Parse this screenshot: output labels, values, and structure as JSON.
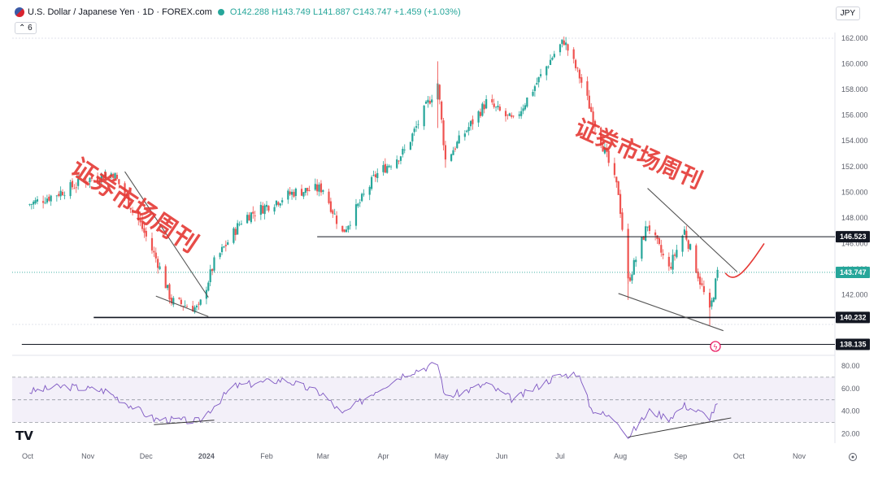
{
  "header": {
    "symbol_title": "U.S. Dollar / Japanese Yen · 1D · FOREX.com",
    "ohlc_text": "O142.288 H143.749 L141.887 C143.747 +1.459 (+1.03%)",
    "indicator_count": "6",
    "currency": "JPY"
  },
  "watermark": {
    "text": "证券市场周刊",
    "small": "周刊"
  },
  "colors": {
    "up": "#26a69a",
    "down": "#ef5350",
    "rsi": "#7e57c2",
    "line": "#131722"
  },
  "chart_data": {
    "type": "candlestick",
    "title": "U.S. Dollar / Japanese Yen · 1D · FOREX.com",
    "y_ticks": [
      "162.000",
      "160.000",
      "158.000",
      "156.000",
      "154.000",
      "152.000",
      "150.000",
      "148.000",
      "146.000",
      "144.000",
      "142.000",
      "140.000"
    ],
    "x_ticks": [
      "Oct",
      "Nov",
      "Dec",
      "2024",
      "Feb",
      "Mar",
      "Apr",
      "May",
      "Jun",
      "Jul",
      "Aug",
      "Sep",
      "Oct",
      "Nov"
    ],
    "ylim": [
      138.4,
      162.4
    ],
    "price_path": [
      {
        "date": "2023-10-01",
        "price": 149.0
      },
      {
        "date": "2023-10-15",
        "price": 149.8
      },
      {
        "date": "2023-11-01",
        "price": 151.0
      },
      {
        "date": "2023-11-14",
        "price": 151.5
      },
      {
        "date": "2023-11-28",
        "price": 147.5
      },
      {
        "date": "2023-12-07",
        "price": 144.5
      },
      {
        "date": "2023-12-14",
        "price": 141.5
      },
      {
        "date": "2023-12-28",
        "price": 140.9
      },
      {
        "date": "2024-01-05",
        "price": 144.5
      },
      {
        "date": "2024-01-20",
        "price": 148.0
      },
      {
        "date": "2024-02-15",
        "price": 150.0
      },
      {
        "date": "2024-03-01",
        "price": 150.3
      },
      {
        "date": "2024-03-11",
        "price": 146.8
      },
      {
        "date": "2024-03-28",
        "price": 151.3
      },
      {
        "date": "2024-04-12",
        "price": 153.2
      },
      {
        "date": "2024-04-29",
        "price": 158.5
      },
      {
        "date": "2024-05-03",
        "price": 152.5
      },
      {
        "date": "2024-05-24",
        "price": 157.0
      },
      {
        "date": "2024-06-07",
        "price": 155.5
      },
      {
        "date": "2024-06-28",
        "price": 160.8
      },
      {
        "date": "2024-07-03",
        "price": 161.8
      },
      {
        "date": "2024-07-11",
        "price": 159.0
      },
      {
        "date": "2024-07-31",
        "price": 150.0
      },
      {
        "date": "2024-08-05",
        "price": 143.0
      },
      {
        "date": "2024-08-15",
        "price": 147.5
      },
      {
        "date": "2024-08-26",
        "price": 144.0
      },
      {
        "date": "2024-09-03",
        "price": 147.0
      },
      {
        "date": "2024-09-16",
        "price": 140.6
      },
      {
        "date": "2024-09-20",
        "price": 143.7
      }
    ],
    "ohlc_last": {
      "open": 142.288,
      "high": 143.749,
      "low": 141.887,
      "close": 143.747,
      "change": 1.459,
      "change_pct": 1.03
    },
    "levels": [
      {
        "label": "146.523",
        "price": 146.523,
        "style": "dark"
      },
      {
        "label": "143.747",
        "price": 143.747,
        "style": "current"
      },
      {
        "label": "140.232",
        "price": 140.232,
        "style": "dark"
      },
      {
        "label": "138.135",
        "price": 138.135,
        "style": "dark"
      }
    ],
    "trendlines": [
      {
        "from": {
          "date": "2023-11-20",
          "price": 151.6
        },
        "to": {
          "date": "2024-01-02",
          "price": 141.8
        }
      },
      {
        "from": {
          "date": "2023-12-06",
          "price": 141.9
        },
        "to": {
          "date": "2024-01-02",
          "price": 140.3
        }
      },
      {
        "from": {
          "date": "2024-08-15",
          "price": 150.3
        },
        "to": {
          "date": "2024-09-30",
          "price": 143.8
        }
      },
      {
        "from": {
          "date": "2024-07-31",
          "price": 142.1
        },
        "to": {
          "date": "2024-09-23",
          "price": 139.2
        }
      }
    ],
    "projection": [
      {
        "date": "2024-09-24",
        "price": 143.7
      },
      {
        "date": "2024-09-29",
        "price": 143.1
      },
      {
        "date": "2024-10-05",
        "price": 144.6
      },
      {
        "date": "2024-10-14",
        "price": 146.0
      }
    ],
    "rsi": {
      "y_ticks": [
        "80.00",
        "60.00",
        "40.00",
        "20.00"
      ],
      "bands": [
        70,
        50,
        30
      ],
      "path": [
        {
          "date": "2023-10-01",
          "value": 57
        },
        {
          "date": "2023-10-20",
          "value": 62
        },
        {
          "date": "2023-11-10",
          "value": 58
        },
        {
          "date": "2023-12-05",
          "value": 33
        },
        {
          "date": "2023-12-28",
          "value": 31
        },
        {
          "date": "2024-01-15",
          "value": 62
        },
        {
          "date": "2024-02-10",
          "value": 68
        },
        {
          "date": "2024-03-01",
          "value": 55
        },
        {
          "date": "2024-03-11",
          "value": 37
        },
        {
          "date": "2024-03-28",
          "value": 58
        },
        {
          "date": "2024-04-12",
          "value": 73
        },
        {
          "date": "2024-04-29",
          "value": 82
        },
        {
          "date": "2024-05-03",
          "value": 52
        },
        {
          "date": "2024-05-24",
          "value": 64
        },
        {
          "date": "2024-06-07",
          "value": 50
        },
        {
          "date": "2024-06-28",
          "value": 70
        },
        {
          "date": "2024-07-10",
          "value": 74
        },
        {
          "date": "2024-07-17",
          "value": 42
        },
        {
          "date": "2024-07-31",
          "value": 31
        },
        {
          "date": "2024-08-05",
          "value": 17
        },
        {
          "date": "2024-08-16",
          "value": 40
        },
        {
          "date": "2024-08-26",
          "value": 34
        },
        {
          "date": "2024-09-03",
          "value": 45
        },
        {
          "date": "2024-09-16",
          "value": 35
        },
        {
          "date": "2024-09-20",
          "value": 46
        }
      ],
      "divergence_lines": [
        {
          "from": {
            "date": "2023-12-05",
            "value": 28
          },
          "to": {
            "date": "2024-01-05",
            "value": 32
          }
        },
        {
          "from": {
            "date": "2024-08-05",
            "value": 17
          },
          "to": {
            "date": "2024-09-27",
            "value": 34
          }
        }
      ]
    }
  }
}
